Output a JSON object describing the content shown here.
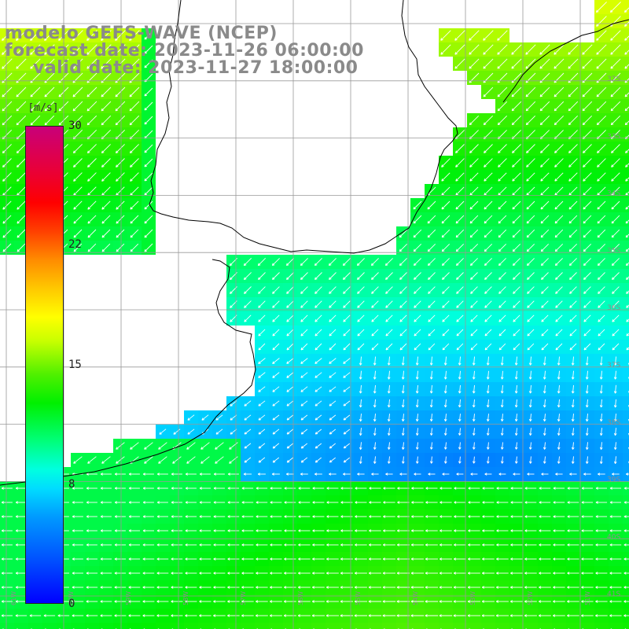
{
  "title": {
    "line1": "modelo GEFS-WAVE (NCEP)",
    "line2": "forecast date: 2023-11-26 06:00:00",
    "line3": "valid date: 2023-11-27 18:00:00"
  },
  "legend": {
    "unit": "[m/s]",
    "ticks": [
      "30",
      "22",
      "15",
      "8",
      "0"
    ],
    "tick_values": [
      30,
      22,
      15,
      8,
      0
    ],
    "range": [
      0,
      30
    ],
    "colors": [
      "#0000ff",
      "#00dcff",
      "#00f000",
      "#ffff00",
      "#ff8c00",
      "#ff0000",
      "#c8007a"
    ]
  },
  "map": {
    "variable": "wind speed and direction",
    "lat_labels": [
      "32S",
      "33S",
      "34S",
      "35S",
      "36S",
      "37S",
      "38S",
      "39S",
      "40S",
      "41S"
    ],
    "lon_labels": [
      "61W",
      "60W",
      "59W",
      "58W",
      "57W",
      "56W",
      "55W",
      "54W",
      "53W",
      "52W",
      "51W"
    ],
    "colors": {
      "land": "#ffffff",
      "coast": "#000000",
      "grid": "#999999",
      "arrow": "#ffffff"
    }
  }
}
